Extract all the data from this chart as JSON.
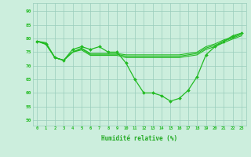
{
  "x": [
    0,
    1,
    2,
    3,
    4,
    5,
    6,
    7,
    8,
    9,
    10,
    11,
    12,
    13,
    14,
    15,
    16,
    17,
    18,
    19,
    20,
    21,
    22,
    23
  ],
  "line_data": [
    79,
    78,
    73,
    72,
    76,
    77,
    76,
    77,
    75,
    75,
    71,
    65,
    60,
    60,
    59,
    57,
    58,
    61,
    66,
    74,
    77,
    79,
    81,
    82
  ],
  "line_trend1": [
    79,
    78.5,
    73,
    72,
    75,
    76.5,
    74.5,
    74.5,
    74.5,
    74.5,
    74,
    74,
    74,
    74,
    74,
    74,
    74,
    74.5,
    75,
    77,
    78,
    79.5,
    80.5,
    82
  ],
  "line_trend2": [
    79,
    78.2,
    73,
    72,
    75,
    76.2,
    74.2,
    74.2,
    74.2,
    74.2,
    73.5,
    73.5,
    73.5,
    73.5,
    73.5,
    73.5,
    73.5,
    74,
    74.5,
    76.5,
    77.5,
    79,
    80.2,
    81.5
  ],
  "line_trend3": [
    79,
    77.8,
    73,
    72,
    75,
    75.8,
    73.8,
    73.8,
    73.8,
    73.8,
    73,
    73,
    73,
    73,
    73,
    73,
    73,
    73.5,
    74,
    76,
    77,
    78.5,
    79.8,
    81
  ],
  "line_color": "#22bb22",
  "bg_color": "#cceedd",
  "grid_color": "#99ccbb",
  "xlabel": "Humidité relative (%)",
  "xlabel_color": "#22aa22",
  "ylabel_ticks": [
    50,
    55,
    60,
    65,
    70,
    75,
    80,
    85,
    90
  ],
  "ylim": [
    48,
    93
  ],
  "xlim": [
    -0.5,
    23.5
  ]
}
